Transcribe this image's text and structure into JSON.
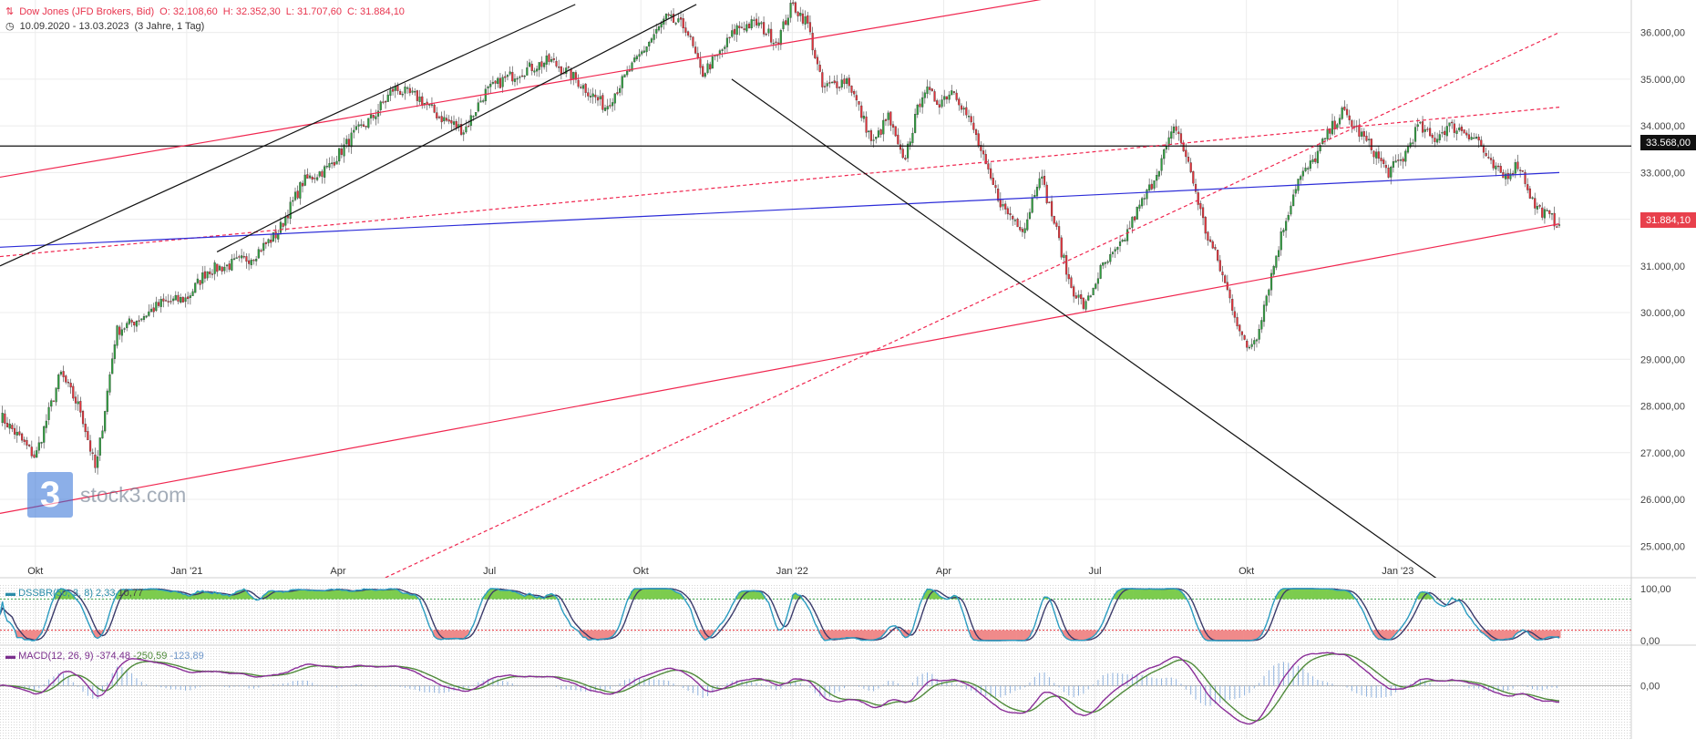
{
  "header": {
    "instrument": "Dow Jones (JFD Brokers, Bid)",
    "ohlc": [
      "O: 32.108,60",
      "H: 32.352,30",
      "L: 31.707,60",
      "C: 31.884,10"
    ],
    "range": "10.09.2020 - 13.03.2023",
    "interval": "(3 Jahre, 1 Tag)"
  },
  "logo": {
    "mark": "3",
    "text": "stock3.com"
  },
  "colors": {
    "up": "#2e9e3e",
    "down": "#e3323a",
    "trend_red": "#f0264f",
    "trend_blue": "#2c2cd8",
    "black": "#111111",
    "last": "#e8404c"
  },
  "price_tags": {
    "level": "33.568,00",
    "last": "31.884,10"
  },
  "chart_data": {
    "type": "candlestick",
    "series_name": "Dow Jones (JFD Brokers, Bid)",
    "ylim": [
      24400,
      36500
    ],
    "y_ticks": [
      25000,
      26000,
      27000,
      28000,
      29000,
      30000,
      31000,
      32000,
      33000,
      34000,
      35000,
      36000
    ],
    "y_tick_labels": [
      "25.000,00",
      "26.000,00",
      "27.000,00",
      "28.000,00",
      "29.000,00",
      "30.000,00",
      "31.000,00",
      "32.000,00",
      "33.000,00",
      "34.000,00",
      "35.000,00",
      "36.000,00"
    ],
    "x_labels": [
      "Okt",
      "Jan '21",
      "Apr",
      "Jul",
      "Okt",
      "Jan '22",
      "Apr",
      "Jul",
      "Okt",
      "Jan '23"
    ],
    "x_label_months": [
      0.7,
      3.7,
      6.7,
      9.7,
      12.7,
      15.7,
      18.7,
      21.7,
      24.7,
      27.7
    ],
    "x_months_range": [
      0,
      30.9
    ],
    "close_anchors": [
      [
        0.0,
        27800
      ],
      [
        0.4,
        27300
      ],
      [
        0.7,
        26900
      ],
      [
        1.2,
        28700
      ],
      [
        1.6,
        27900
      ],
      [
        1.9,
        26600
      ],
      [
        2.3,
        29600
      ],
      [
        2.8,
        29900
      ],
      [
        3.2,
        30200
      ],
      [
        3.7,
        30300
      ],
      [
        4.1,
        30900
      ],
      [
        4.5,
        31000
      ],
      [
        5.0,
        31200
      ],
      [
        5.5,
        31700
      ],
      [
        6.0,
        32800
      ],
      [
        6.5,
        33100
      ],
      [
        7.0,
        33800
      ],
      [
        7.4,
        34200
      ],
      [
        7.8,
        34800
      ],
      [
        8.3,
        34600
      ],
      [
        8.7,
        34200
      ],
      [
        9.2,
        33900
      ],
      [
        9.6,
        34700
      ],
      [
        10.0,
        35000
      ],
      [
        10.4,
        35200
      ],
      [
        10.9,
        35400
      ],
      [
        11.3,
        35100
      ],
      [
        11.7,
        34700
      ],
      [
        12.0,
        34400
      ],
      [
        12.3,
        34900
      ],
      [
        12.8,
        35700
      ],
      [
        13.2,
        36300
      ],
      [
        13.6,
        36100
      ],
      [
        13.9,
        35100
      ],
      [
        14.3,
        35600
      ],
      [
        14.6,
        36100
      ],
      [
        15.0,
        36200
      ],
      [
        15.4,
        35800
      ],
      [
        15.7,
        36600
      ],
      [
        16.0,
        36200
      ],
      [
        16.3,
        34800
      ],
      [
        16.8,
        35000
      ],
      [
        17.3,
        33600
      ],
      [
        17.6,
        34200
      ],
      [
        17.9,
        33200
      ],
      [
        18.3,
        34800
      ],
      [
        18.6,
        34500
      ],
      [
        18.9,
        34800
      ],
      [
        19.3,
        33900
      ],
      [
        19.6,
        32900
      ],
      [
        19.9,
        32200
      ],
      [
        20.3,
        31800
      ],
      [
        20.6,
        33000
      ],
      [
        20.9,
        31900
      ],
      [
        21.2,
        30600
      ],
      [
        21.5,
        30100
      ],
      [
        21.8,
        30900
      ],
      [
        22.2,
        31400
      ],
      [
        22.5,
        32100
      ],
      [
        22.8,
        32700
      ],
      [
        23.1,
        33500
      ],
      [
        23.3,
        34000
      ],
      [
        23.6,
        33000
      ],
      [
        23.9,
        31700
      ],
      [
        24.1,
        31200
      ],
      [
        24.4,
        30200
      ],
      [
        24.7,
        29200
      ],
      [
        24.9,
        29500
      ],
      [
        25.1,
        30400
      ],
      [
        25.4,
        31700
      ],
      [
        25.7,
        32800
      ],
      [
        26.0,
        33200
      ],
      [
        26.3,
        33800
      ],
      [
        26.6,
        34300
      ],
      [
        26.9,
        33900
      ],
      [
        27.2,
        33500
      ],
      [
        27.5,
        33000
      ],
      [
        27.8,
        33300
      ],
      [
        28.1,
        34000
      ],
      [
        28.4,
        33700
      ],
      [
        28.7,
        34000
      ],
      [
        29.0,
        33900
      ],
      [
        29.3,
        33700
      ],
      [
        29.5,
        33200
      ],
      [
        29.8,
        32900
      ],
      [
        30.1,
        33200
      ],
      [
        30.4,
        32300
      ],
      [
        30.9,
        31884
      ]
    ],
    "horizontal_levels": [
      33568
    ],
    "trendlines": [
      {
        "style": "solid",
        "color": "red",
        "from": [
          0.0,
          32900
        ],
        "to": [
          30.9,
          38600
        ]
      },
      {
        "style": "solid",
        "color": "red",
        "from": [
          0.0,
          25700
        ],
        "to": [
          30.9,
          31900
        ]
      },
      {
        "style": "dashed",
        "color": "red",
        "from": [
          0.0,
          31200
        ],
        "to": [
          30.9,
          34400
        ]
      },
      {
        "style": "dashed",
        "color": "red",
        "from": [
          5.0,
          23000
        ],
        "to": [
          30.9,
          36000
        ]
      },
      {
        "style": "solid",
        "color": "blue",
        "from": [
          0.0,
          31400
        ],
        "to": [
          30.9,
          33000
        ]
      },
      {
        "style": "solid",
        "color": "black",
        "from": [
          0.0,
          31000
        ],
        "to": [
          11.4,
          36600
        ]
      },
      {
        "style": "solid",
        "color": "black",
        "from": [
          4.3,
          31300
        ],
        "to": [
          13.8,
          36600
        ]
      },
      {
        "style": "solid",
        "color": "black",
        "from": [
          14.5,
          35000
        ],
        "to": [
          29.0,
          23900
        ]
      }
    ],
    "indicators": [
      {
        "name": "DSSBR",
        "label": "DSSBR(50, 3, 8)",
        "values": [
          "2,33",
          "10,77"
        ],
        "ylim": [
          0,
          100
        ],
        "y_tick_labels": [
          "100,00",
          "0,00"
        ],
        "upper": 80,
        "lower": 20
      },
      {
        "name": "MACD",
        "label": "MACD(12, 26, 9)",
        "values": [
          "-374,48",
          "-250,59",
          "-123,89"
        ],
        "y_tick_labels": [
          "0,00"
        ]
      }
    ]
  }
}
